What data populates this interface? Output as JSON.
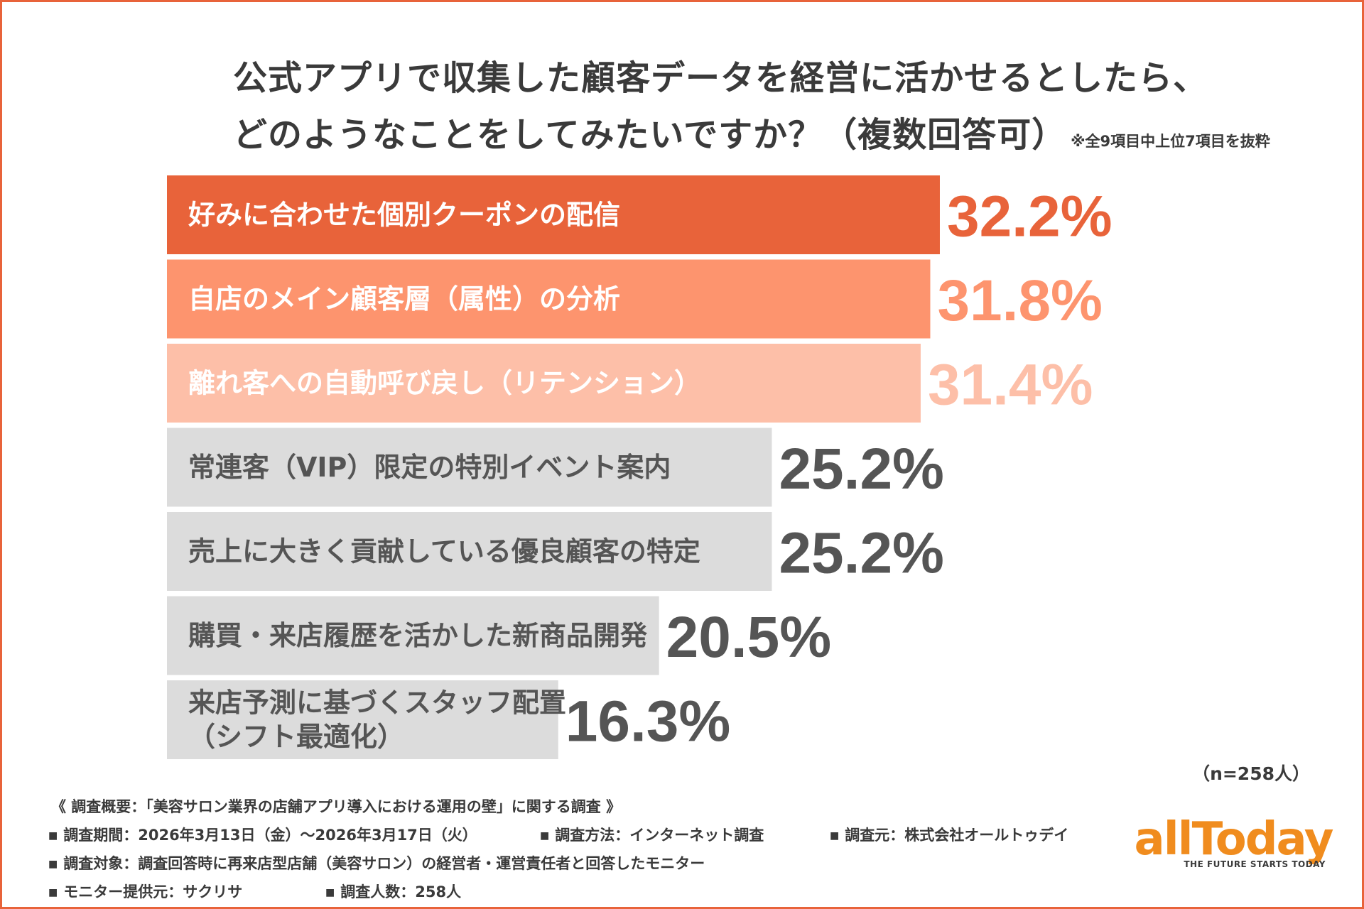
{
  "title_line1": "公式アプリで収集した顧客データを経営に活かせるとしたら、",
  "title_line2": "どのようなことをしてみたいですか？（複数回答可）",
  "title_note": "※全9項目中上位7項目を抜粋",
  "chart_data": {
    "type": "bar",
    "orientation": "horizontal",
    "categories": [
      "好みに合わせた個別クーポンの配信",
      "自店のメイン顧客層（属性）の分析",
      "離れ客への自動呼び戻し（リテンション）",
      "常連客（VIP）限定の特別イベント案内",
      "売上に大きく貢献している優良顧客の特定",
      "購買・来店履歴を活かした新商品開発",
      "来店予測に基づくスタッフ配置\n（シフト最適化）"
    ],
    "values": [
      32.2,
      31.8,
      31.4,
      25.2,
      25.2,
      20.5,
      16.3
    ],
    "value_labels": [
      "32.2%",
      "31.8%",
      "31.4%",
      "25.2%",
      "25.2%",
      "20.5%",
      "16.3%"
    ],
    "unit": "%",
    "xlim": [
      0,
      33
    ],
    "bar_colors": [
      "#e8633a",
      "#fd946e",
      "#fdbfa8",
      "#dcdcdc",
      "#dcdcdc",
      "#dcdcdc",
      "#dcdcdc"
    ],
    "label_colors": [
      "#e8633a",
      "#fd946e",
      "#fdbfa8",
      "#555555",
      "#555555",
      "#555555",
      "#555555"
    ],
    "category_text_colors": [
      "#ffffff",
      "#ffffff",
      "#ffffff",
      "#555555",
      "#555555",
      "#555555",
      "#555555"
    ]
  },
  "n_label": "（n=258人）",
  "footer": {
    "survey_name": "《 調査概要：「美容サロン業界の店舗アプリ導入における運用の壁」に関する調査 》",
    "period": "調査期間：2026年3月13日（金）〜2026年3月17日（火）",
    "method": "調査方法：インターネット調査",
    "source": "調査元：株式会社オールトゥデイ",
    "target": "調査対象：調査回答時に再来店型店舗（美容サロン）の経営者・運営責任者と回答したモニター",
    "monitor_provider": "モニター提供元：サクリサ",
    "respondents": "調査人数：258人",
    "bullet": "■"
  },
  "logo": {
    "name": "allToday",
    "tagline": "THE FUTURE STARTS TODAY"
  },
  "colors": {
    "accent": "#e8633a",
    "logo": "#f08c1e",
    "text": "#3a3a3a"
  }
}
